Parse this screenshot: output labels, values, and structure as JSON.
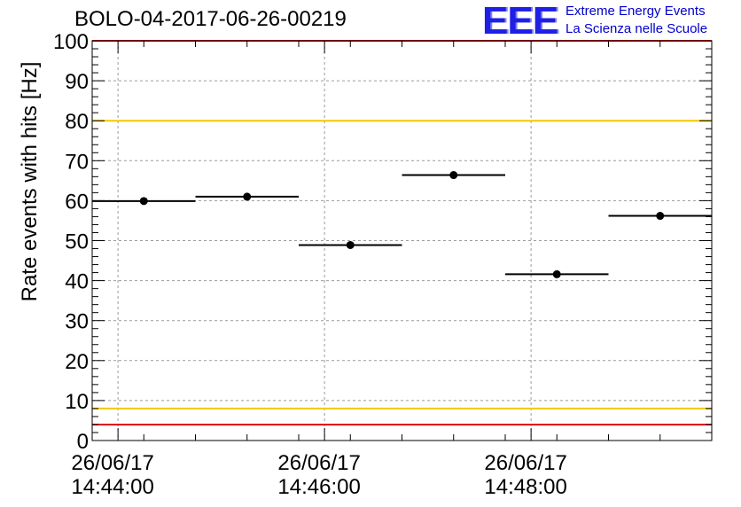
{
  "header": {
    "title": "BOLO-04-2017-06-26-00219",
    "logo_text": "EEE",
    "logo_line1": "Extreme Energy Events",
    "logo_line2": "La Scienza nelle Scuole"
  },
  "colors": {
    "logo": "#1f1fe6",
    "logo_text": "#0000cc",
    "red_line": "#e00000",
    "yellow_line": "#f2c800",
    "grid": "#9a9a9a",
    "points": "#000000"
  },
  "chart_data": {
    "type": "scatter",
    "title": "BOLO-04-2017-06-26-00219",
    "xlabel": "",
    "ylabel": "Rate events with hits [Hz]",
    "ylim": [
      0,
      100
    ],
    "xlim": [
      "26/06/17 14:43:45",
      "26/06/17 14:49:45"
    ],
    "grid": true,
    "x_ticks": [
      {
        "date": "26/06/17",
        "time": "14:44:00"
      },
      {
        "date": "26/06/17",
        "time": "14:46:00"
      },
      {
        "date": "26/06/17",
        "time": "14:48:00"
      }
    ],
    "y_ticks": [
      0,
      10,
      20,
      30,
      40,
      50,
      60,
      70,
      80,
      90,
      100
    ],
    "points": [
      {
        "x": "26/06/17 14:44:15",
        "x_start": "26/06/17 14:43:45",
        "x_end": "26/06/17 14:44:45",
        "y": 59.9
      },
      {
        "x": "26/06/17 14:45:15",
        "x_start": "26/06/17 14:44:45",
        "x_end": "26/06/17 14:45:45",
        "y": 61.0
      },
      {
        "x": "26/06/17 14:46:15",
        "x_start": "26/06/17 14:45:45",
        "x_end": "26/06/17 14:46:45",
        "y": 48.9
      },
      {
        "x": "26/06/17 14:47:15",
        "x_start": "26/06/17 14:46:45",
        "x_end": "26/06/17 14:47:45",
        "y": 66.4
      },
      {
        "x": "26/06/17 14:48:15",
        "x_start": "26/06/17 14:47:45",
        "x_end": "26/06/17 14:48:45",
        "y": 41.6
      },
      {
        "x": "26/06/17 14:49:15",
        "x_start": "26/06/17 14:48:45",
        "x_end": "26/06/17 14:49:45",
        "y": 56.2
      }
    ],
    "reference_lines": [
      {
        "y": 100,
        "color": "#e00000"
      },
      {
        "y": 80,
        "color": "#f2c800"
      },
      {
        "y": 8,
        "color": "#f2c800"
      },
      {
        "y": 4,
        "color": "#e00000"
      }
    ]
  }
}
